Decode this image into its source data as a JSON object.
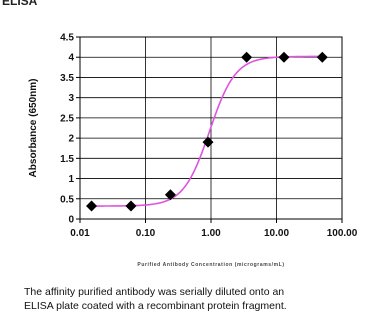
{
  "heading": "ELISA",
  "caption": [
    "The affinity purified antibody was serially diluted onto an",
    "ELISA plate coated with a recombinant protein fragment."
  ],
  "chart_data": {
    "type": "scatter",
    "title": "",
    "xlabel": "Purified Antibody Concentration (micrograms/mL)",
    "ylabel": "Absorbance (650nm)",
    "xscale": "log",
    "xlim": [
      0.01,
      100
    ],
    "ylim": [
      0,
      4.5
    ],
    "x_ticks": [
      0.01,
      0.1,
      1,
      10,
      100
    ],
    "x_tick_labels": [
      "0.01",
      "0.10",
      "1.00",
      "10.00",
      "100.00"
    ],
    "y_ticks": [
      0,
      0.5,
      1,
      1.5,
      2,
      2.5,
      3,
      3.5,
      4,
      4.5
    ],
    "y_tick_labels": [
      "0",
      "0.5",
      "1",
      "1.5",
      "2",
      "2.5",
      "3",
      "3.5",
      "4",
      "4.5"
    ],
    "grid": true,
    "series": [
      {
        "points": [
          {
            "x": 0.015,
            "y": 0.32
          },
          {
            "x": 0.06,
            "y": 0.32
          },
          {
            "x": 0.24,
            "y": 0.6
          },
          {
            "x": 0.9,
            "y": 1.9
          },
          {
            "x": 3.5,
            "y": 4.0
          },
          {
            "x": 13,
            "y": 4.0
          },
          {
            "x": 50,
            "y": 4.0
          }
        ],
        "marker": "diamond",
        "marker_color": "#000000",
        "fit_color": "#dd55dd",
        "fit": {
          "bottom": 0.32,
          "top": 4.02,
          "ec50": 0.95,
          "hill": 2.2
        }
      }
    ]
  }
}
